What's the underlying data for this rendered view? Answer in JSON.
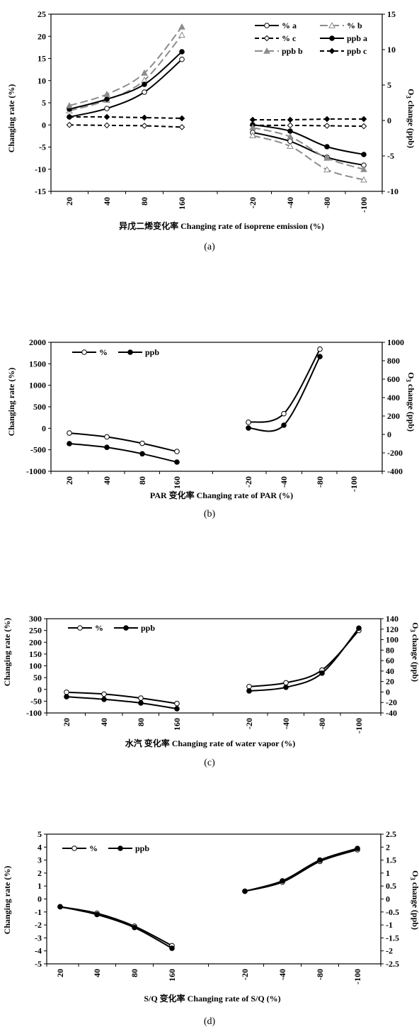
{
  "charts": [
    {
      "id": "a",
      "caption": "(a)",
      "xlabel": "异戊二烯变化率 Changing rate of isoprene emission (%)",
      "ylabel": "Changing rate (%)",
      "y2label": "O3 change (ppb)",
      "legend_position": "top-right"
    },
    {
      "id": "b",
      "caption": "(b)",
      "xlabel": "PAR 变化率 Changing rate of PAR (%)",
      "ylabel": "Changing rate (%)",
      "y2label": "O3 change (ppb)",
      "legend_position": "top-left"
    },
    {
      "id": "c",
      "caption": "(c)",
      "xlabel": "水汽 变化率 Changing rate of water vapor (%)",
      "ylabel": "Changing rate (%)",
      "y2label": "O3 change (ppb)",
      "legend_position": "top-left"
    },
    {
      "id": "d",
      "caption": "(d)",
      "xlabel": "S/Q 变化率 Changing rate of S/Q (%)",
      "ylabel": "Changing rate (%)",
      "y2label": "O3 change (ppb)",
      "legend_position": "top-left"
    }
  ],
  "chart_data": [
    {
      "type": "line",
      "categories": [
        "20",
        "40",
        "80",
        "160",
        "-20",
        "-40",
        "-80",
        "-100"
      ],
      "ylim": [
        -15,
        25
      ],
      "yticks": [
        -15,
        -10,
        -5,
        0,
        5,
        10,
        15,
        20,
        25
      ],
      "y2lim": [
        -10,
        15
      ],
      "y2ticks": [
        -10,
        -5,
        0,
        5,
        10,
        15
      ],
      "grid": false,
      "series": [
        {
          "name": "% a",
          "axis": "left",
          "values": [
            1.8,
            3.7,
            7.4,
            14.8,
            -1.7,
            -3.7,
            -7.3,
            -9.1
          ],
          "color": "#000000",
          "dash": "solid",
          "marker": "open-circle"
        },
        {
          "name": "% b",
          "axis": "left",
          "values": [
            3.2,
            5.6,
            10.1,
            20.3,
            -2.4,
            -4.8,
            -10.1,
            -12.4
          ],
          "color": "#8c8c8c",
          "dash": "long-dash",
          "marker": "open-triangle"
        },
        {
          "name": "% c",
          "axis": "left",
          "values": [
            0.0,
            -0.1,
            -0.2,
            -0.5,
            -0.1,
            -0.1,
            -0.2,
            -0.3
          ],
          "color": "#000000",
          "dash": "dash",
          "marker": "open-diamond"
        },
        {
          "name": "ppb a",
          "axis": "right",
          "values": [
            1.6,
            3.0,
            5.1,
            9.7,
            -0.6,
            -1.5,
            -3.7,
            -4.8
          ],
          "color": "#000000",
          "dash": "solid",
          "marker": "filled-circle"
        },
        {
          "name": "ppb b",
          "axis": "right",
          "values": [
            2.1,
            3.7,
            6.7,
            13.2,
            -1.0,
            -2.3,
            -5.3,
            -6.9
          ],
          "color": "#8c8c8c",
          "dash": "long-dash",
          "marker": "filled-triangle"
        },
        {
          "name": "ppb c",
          "axis": "right",
          "values": [
            0.5,
            0.5,
            0.4,
            0.3,
            0.1,
            0.1,
            0.2,
            0.2
          ],
          "color": "#000000",
          "dash": "dash",
          "marker": "filled-diamond"
        }
      ]
    },
    {
      "type": "line",
      "categories": [
        "20",
        "40",
        "80",
        "160",
        "-20",
        "-40",
        "-80",
        "-100"
      ],
      "ylim": [
        -1000,
        2000
      ],
      "yticks": [
        -1000,
        -500,
        0,
        500,
        1000,
        1500,
        2000
      ],
      "y2lim": [
        -400,
        1000
      ],
      "y2ticks": [
        -400,
        -200,
        0,
        200,
        400,
        600,
        800,
        1000
      ],
      "grid": false,
      "series": [
        {
          "name": "%",
          "axis": "left",
          "values": [
            -110,
            -200,
            -350,
            -540,
            140,
            340,
            1840,
            null
          ],
          "color": "#000000",
          "dash": "solid",
          "marker": "open-circle"
        },
        {
          "name": "ppb",
          "axis": "right",
          "values": [
            -100,
            -140,
            -210,
            -300,
            70,
            100,
            845,
            null
          ],
          "color": "#000000",
          "dash": "solid",
          "marker": "filled-circle"
        }
      ]
    },
    {
      "type": "line",
      "categories": [
        "20",
        "40",
        "80",
        "160",
        "-20",
        "-40",
        "-80",
        "-100"
      ],
      "ylim": [
        -100,
        300
      ],
      "yticks": [
        -100,
        -50,
        0,
        50,
        100,
        150,
        200,
        250,
        300
      ],
      "y2lim": [
        -40,
        140
      ],
      "y2ticks": [
        -40,
        -20,
        0,
        20,
        40,
        60,
        80,
        100,
        120,
        140
      ],
      "grid": false,
      "series": [
        {
          "name": "%",
          "axis": "left",
          "values": [
            -12,
            -20,
            -37,
            -60,
            12,
            28,
            82,
            250
          ],
          "color": "#000000",
          "dash": "solid",
          "marker": "open-circle"
        },
        {
          "name": "ppb",
          "axis": "right",
          "values": [
            -9,
            -14,
            -21,
            -32,
            2,
            9,
            36,
            122
          ],
          "color": "#000000",
          "dash": "solid",
          "marker": "filled-circle"
        }
      ]
    },
    {
      "type": "line",
      "categories": [
        "20",
        "40",
        "80",
        "160",
        "-20",
        "-40",
        "-80",
        "-100"
      ],
      "ylim": [
        -5,
        5
      ],
      "yticks": [
        -5,
        -4,
        -3,
        -2,
        -1,
        0,
        1,
        2,
        3,
        4,
        5
      ],
      "y2lim": [
        -2.5,
        2.5
      ],
      "y2ticks": [
        -2.5,
        -2,
        -1.5,
        -1,
        -0.5,
        0,
        0.5,
        1,
        1.5,
        2,
        2.5
      ],
      "grid": false,
      "series": [
        {
          "name": "%",
          "axis": "left",
          "values": [
            -0.6,
            -1.1,
            -2.1,
            -3.6,
            0.6,
            1.3,
            2.9,
            3.8
          ],
          "color": "#000000",
          "dash": "solid",
          "marker": "open-circle"
        },
        {
          "name": "ppb",
          "axis": "right",
          "values": [
            -0.3,
            -0.6,
            -1.1,
            -1.9,
            0.3,
            0.7,
            1.5,
            1.95
          ],
          "color": "#000000",
          "dash": "solid",
          "marker": "filled-circle"
        }
      ]
    }
  ]
}
